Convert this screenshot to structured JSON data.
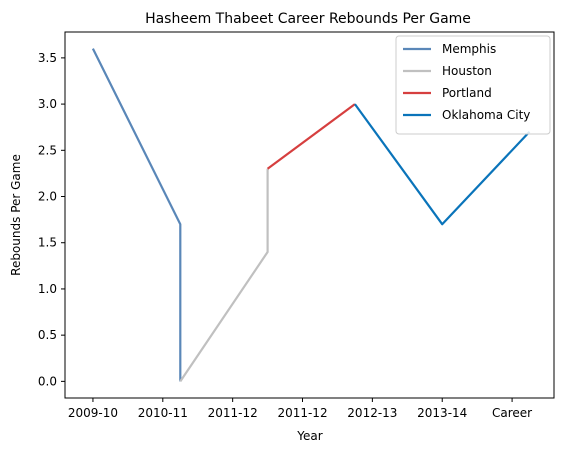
{
  "chart_data": {
    "type": "line",
    "title": "Hasheem Thabeet Career Rebounds Per Game",
    "xlabel": "Year",
    "ylabel": "Rebounds Per Game",
    "categories": [
      "2009-10",
      "2010-11",
      "2011-12",
      "2011-12",
      "2012-13",
      "2013-14",
      "Career"
    ],
    "ylim": [
      -0.18,
      3.78
    ],
    "yticks": [
      "0.0",
      "0.5",
      "1.0",
      "1.5",
      "2.0",
      "2.5",
      "3.0",
      "3.5"
    ],
    "legend_position": "top-right",
    "series": [
      {
        "name": "Memphis",
        "color": "#5a87b8",
        "points": [
          [
            0,
            3.6
          ],
          [
            1.25,
            1.7
          ],
          [
            1.25,
            0.0
          ]
        ]
      },
      {
        "name": "Houston",
        "color": "#c0c0c0",
        "points": [
          [
            1.25,
            0.0
          ],
          [
            2.5,
            1.4
          ],
          [
            2.5,
            2.3
          ]
        ]
      },
      {
        "name": "Portland",
        "color": "#d63f3f",
        "points": [
          [
            2.5,
            2.3
          ],
          [
            3.75,
            3.0
          ]
        ]
      },
      {
        "name": "Oklahoma City",
        "color": "#0a74ba",
        "points": [
          [
            3.75,
            3.0
          ],
          [
            5.0,
            1.7
          ],
          [
            6.25,
            2.7
          ]
        ]
      }
    ]
  }
}
